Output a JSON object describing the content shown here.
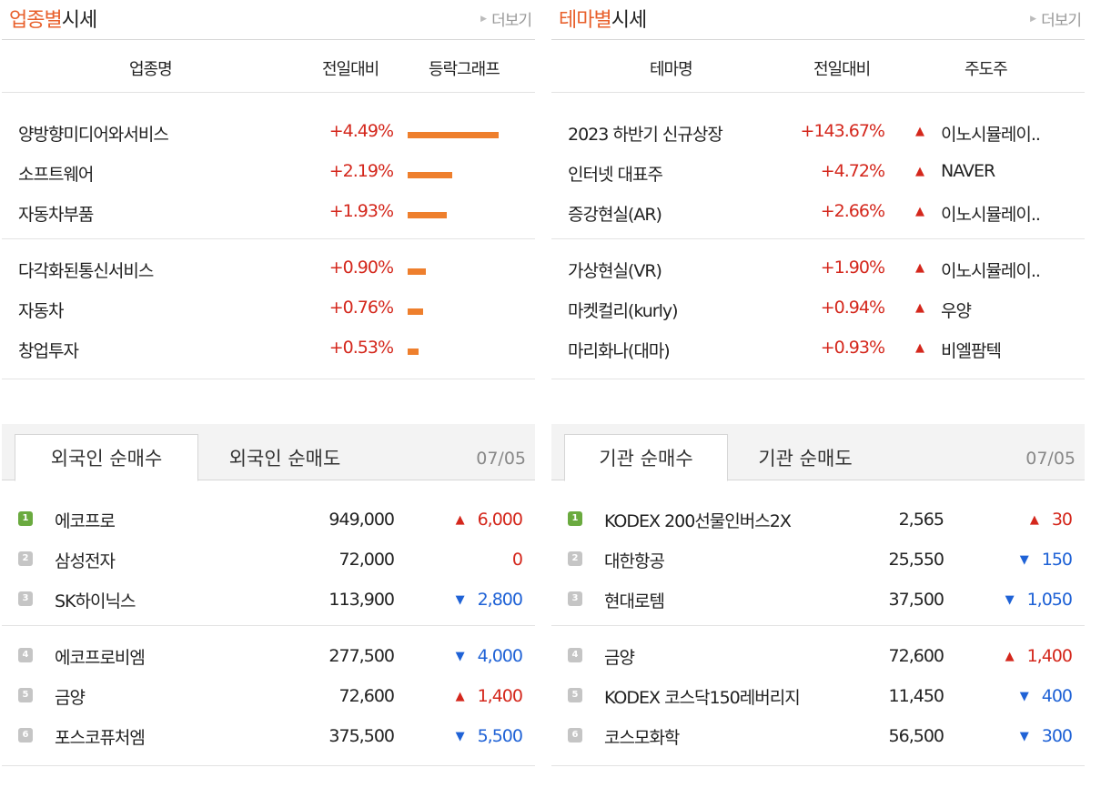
{
  "industry": {
    "title_accent": "업종별",
    "title_rest": "시세",
    "more": "더보기",
    "headers": [
      "업종명",
      "전일대비",
      "등락그래프"
    ],
    "rows": [
      {
        "name": "양방향미디어와서비스",
        "change": "+4.49%",
        "bar_pct": 4.49
      },
      {
        "name": "소프트웨어",
        "change": "+2.19%",
        "bar_pct": 2.19
      },
      {
        "name": "자동차부품",
        "change": "+1.93%",
        "bar_pct": 1.93
      },
      {
        "name": "다각화된통신서비스",
        "change": "+0.90%",
        "bar_pct": 0.9
      },
      {
        "name": "자동차",
        "change": "+0.76%",
        "bar_pct": 0.76
      },
      {
        "name": "창업투자",
        "change": "+0.53%",
        "bar_pct": 0.53
      }
    ]
  },
  "theme": {
    "title_accent": "테마별",
    "title_rest": "시세",
    "more": "더보기",
    "headers": [
      "테마명",
      "전일대비",
      "주도주"
    ],
    "rows": [
      {
        "name": "2023 하반기 신규상장",
        "change": "+143.67%",
        "leader": "이노시뮬레이.."
      },
      {
        "name": "인터넷 대표주",
        "change": "+4.72%",
        "leader": "NAVER"
      },
      {
        "name": "증강현실(AR)",
        "change": "+2.66%",
        "leader": "이노시뮬레이.."
      },
      {
        "name": "가상현실(VR)",
        "change": "+1.90%",
        "leader": "이노시뮬레이.."
      },
      {
        "name": "마켓컬리(kurly)",
        "change": "+0.94%",
        "leader": "우양"
      },
      {
        "name": "마리화나(대마)",
        "change": "+0.93%",
        "leader": "비엘팜텍"
      }
    ]
  },
  "foreign": {
    "tab_active": "외국인 순매수",
    "tab_inactive": "외국인 순매도",
    "date": "07/05",
    "rows": [
      {
        "rank": "1",
        "name": "에코프로",
        "price": "949,000",
        "dir": "up",
        "change": "6,000"
      },
      {
        "rank": "2",
        "name": "삼성전자",
        "price": "72,000",
        "dir": "flat",
        "change": "0"
      },
      {
        "rank": "3",
        "name": "SK하이닉스",
        "price": "113,900",
        "dir": "dn",
        "change": "2,800"
      },
      {
        "rank": "4",
        "name": "에코프로비엠",
        "price": "277,500",
        "dir": "dn",
        "change": "4,000"
      },
      {
        "rank": "5",
        "name": "금양",
        "price": "72,600",
        "dir": "up",
        "change": "1,400"
      },
      {
        "rank": "6",
        "name": "포스코퓨처엠",
        "price": "375,500",
        "dir": "dn",
        "change": "5,500"
      }
    ]
  },
  "institution": {
    "tab_active": "기관 순매수",
    "tab_inactive": "기관 순매도",
    "date": "07/05",
    "rows": [
      {
        "rank": "1",
        "name": "KODEX 200선물인버스2X",
        "price": "2,565",
        "dir": "up",
        "change": "30"
      },
      {
        "rank": "2",
        "name": "대한항공",
        "price": "25,550",
        "dir": "dn",
        "change": "150"
      },
      {
        "rank": "3",
        "name": "현대로템",
        "price": "37,500",
        "dir": "dn",
        "change": "1,050"
      },
      {
        "rank": "4",
        "name": "금양",
        "price": "72,600",
        "dir": "up",
        "change": "1,400"
      },
      {
        "rank": "5",
        "name": "KODEX 코스닥150레버리지",
        "price": "11,450",
        "dir": "dn",
        "change": "400"
      },
      {
        "rank": "6",
        "name": "코스모화학",
        "price": "56,500",
        "dir": "dn",
        "change": "300"
      }
    ]
  },
  "colors": {
    "accent": "#e8602c",
    "bar": "#ee7f2d",
    "up": "#d4271c",
    "down": "#1f62d6",
    "rank_first": "#6aaa3f",
    "rank_other": "#c5c5c5"
  },
  "icons": {
    "more": "triangle-right-icon",
    "up": "triangle-up-icon",
    "down": "triangle-down-icon"
  }
}
